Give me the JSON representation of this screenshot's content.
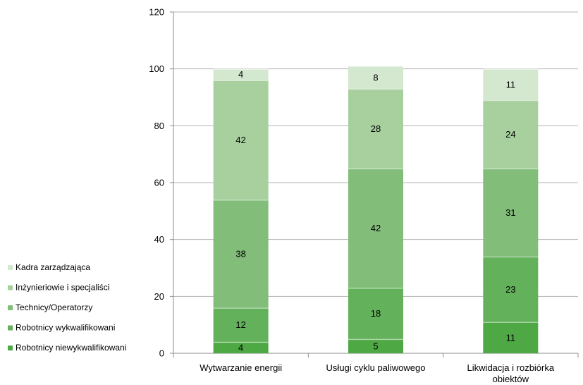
{
  "chart_data": {
    "type": "bar",
    "stacked": true,
    "categories": [
      "Wytwarzanie energii",
      "Usługi cyklu paliwowego",
      "Likwidacja i rozbiórka obiektów"
    ],
    "category_lines": [
      [
        "Wytwarzanie energii"
      ],
      [
        "Usługi cyklu paliwowego"
      ],
      [
        "Likwidacja i rozbiórka",
        "obiektów"
      ]
    ],
    "series": [
      {
        "name": "Robotnicy niewykwalifikowani",
        "values": [
          4,
          5,
          11
        ],
        "color": "#4ea944"
      },
      {
        "name": "Robotnicy wykwalifikowani",
        "values": [
          12,
          18,
          23
        ],
        "color": "#64b15b"
      },
      {
        "name": "Technicy/Operatorzy",
        "values": [
          38,
          42,
          31
        ],
        "color": "#82bd79"
      },
      {
        "name": "Inżynieriowie i specjaliści",
        "values": [
          42,
          28,
          24
        ],
        "color": "#a8d09f"
      },
      {
        "name": "Kadra zarządzająca",
        "values": [
          4,
          8,
          11
        ],
        "color": "#d3e8cf"
      }
    ],
    "legend_order": [
      "Kadra zarządzająca",
      "Inżynieriowie i specjaliści",
      "Technicy/Operatorzy",
      "Robotnicy wykwalifikowani",
      "Robotnicy niewykwalifikowani"
    ],
    "ylim": [
      0,
      120
    ],
    "yticks": [
      0,
      20,
      40,
      60,
      80,
      100,
      120
    ],
    "grid": true,
    "legend_position": "left-bottom",
    "title": "",
    "xlabel": "",
    "ylabel": ""
  }
}
